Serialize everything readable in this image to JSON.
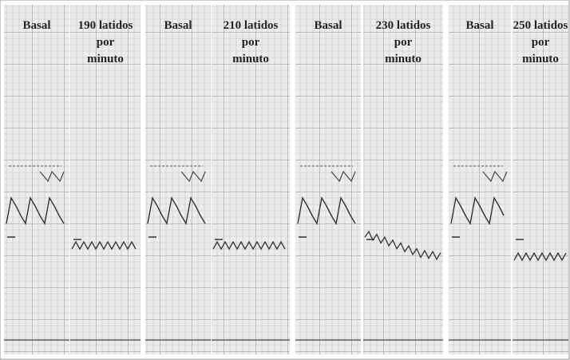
{
  "panels": [
    {
      "lines": [
        "Basal"
      ]
    },
    {
      "lines": [
        "190 latidos",
        "por",
        "minuto"
      ]
    },
    {
      "lines": [
        "Basal"
      ]
    },
    {
      "lines": [
        "210 latidos",
        "por",
        "minuto"
      ]
    },
    {
      "lines": [
        "Basal"
      ]
    },
    {
      "lines": [
        "230 latidos",
        "por",
        "minuto"
      ]
    },
    {
      "lines": [
        "Basal"
      ]
    },
    {
      "lines": [
        "250 latidos",
        "por",
        "minuto"
      ]
    }
  ]
}
